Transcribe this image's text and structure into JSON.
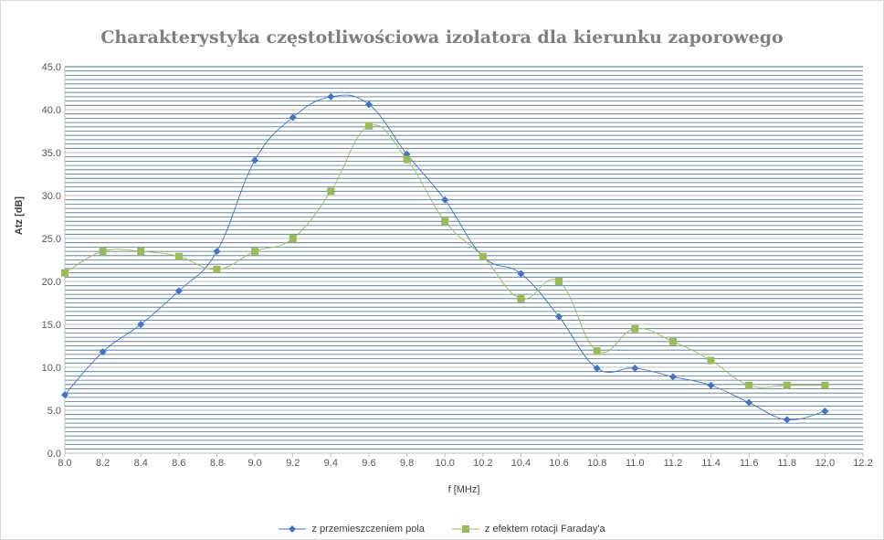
{
  "chart_data": {
    "type": "line",
    "title": "Charakterystyka częstotliwościowa izolatora dla kierunku zaporowego",
    "xlabel": "f [MHz]",
    "ylabel": "Atz [dB]",
    "xlim": [
      8.0,
      12.2
    ],
    "ylim": [
      0.0,
      45.0
    ],
    "x_ticks": [
      "8.0",
      "8.2",
      "8.4",
      "8.6",
      "8.8",
      "9.0",
      "9.2",
      "9.4",
      "9.6",
      "9.8",
      "10.0",
      "10.2",
      "10.4",
      "10.6",
      "10.8",
      "11.0",
      "11.2",
      "11.4",
      "11.6",
      "11.8",
      "12.0",
      "12.2"
    ],
    "y_ticks": [
      "0.0",
      "5.0",
      "10.0",
      "15.0",
      "20.0",
      "25.0",
      "30.0",
      "35.0",
      "40.0",
      "45.0"
    ],
    "grid": true,
    "legend_position": "bottom",
    "x": [
      8.0,
      8.2,
      8.4,
      8.6,
      8.8,
      9.0,
      9.2,
      9.4,
      9.6,
      9.8,
      10.0,
      10.2,
      10.4,
      10.6,
      10.8,
      11.0,
      11.2,
      11.4,
      11.6,
      11.8,
      12.0
    ],
    "series": [
      {
        "name": "z przemieszczeniem pola",
        "color": "#4472c4",
        "marker": "diamond",
        "values": [
          6.8,
          11.8,
          15.0,
          18.9,
          23.5,
          34.1,
          39.1,
          41.5,
          40.6,
          34.8,
          29.5,
          22.9,
          20.9,
          15.9,
          9.9,
          9.9,
          8.9,
          7.9,
          5.9,
          3.9,
          4.9
        ]
      },
      {
        "name": "z efektem rotacji Faraday'a",
        "color": "#9bbb59",
        "marker": "square",
        "values": [
          21.0,
          23.5,
          23.5,
          22.9,
          21.4,
          23.5,
          25.0,
          30.5,
          38.1,
          34.2,
          27.0,
          22.9,
          18.0,
          20.0,
          11.9,
          14.5,
          13.0,
          10.8,
          7.9,
          7.9,
          7.9
        ]
      }
    ]
  }
}
